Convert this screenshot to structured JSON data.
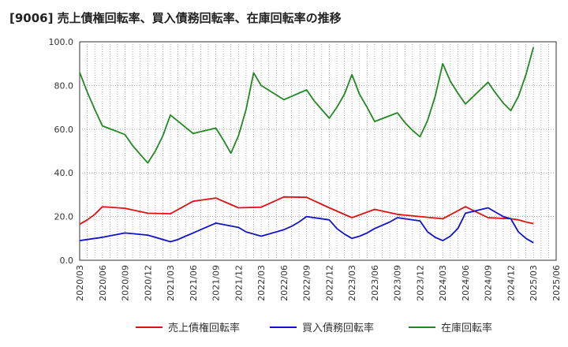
{
  "chart_data": {
    "type": "line",
    "title": "[9006]  売上債権回転率、買入債務回転率、在庫回転率の推移",
    "xlabel": "",
    "ylabel": "",
    "ylim": [
      0,
      100
    ],
    "y_ticks": [
      "0.0",
      "20.0",
      "40.0",
      "60.0",
      "80.0",
      "100.0"
    ],
    "x_ticks": [
      "2020/03",
      "2020/06",
      "2020/09",
      "2020/12",
      "2021/03",
      "2021/06",
      "2021/09",
      "2021/12",
      "2022/03",
      "2022/06",
      "2022/09",
      "2022/12",
      "2023/03",
      "2023/06",
      "2023/09",
      "2023/12",
      "2024/03",
      "2024/06",
      "2024/09",
      "2024/12",
      "2025/03",
      "2025/06"
    ],
    "grid": true,
    "legend_position": "bottom",
    "x_months": [
      0,
      1,
      2,
      3,
      4,
      5,
      6,
      7,
      8,
      9,
      10,
      11,
      12,
      13,
      14,
      15,
      16,
      17,
      18,
      19,
      20,
      21,
      22,
      23,
      24,
      25,
      26,
      27,
      28,
      29,
      30,
      31,
      32,
      33,
      34,
      35,
      36,
      37,
      38,
      39,
      40,
      41,
      42,
      43,
      44,
      45,
      46,
      47,
      48,
      49,
      50,
      51,
      52,
      53,
      54,
      55,
      56,
      57,
      58,
      59,
      60
    ],
    "series": [
      {
        "name": "売上債権回転率",
        "color": "#dd1111",
        "x": [
          0,
          1,
          2,
          3,
          6,
          9,
          12,
          15,
          18,
          21,
          24,
          27,
          30,
          33,
          36,
          39,
          42,
          45,
          48,
          51,
          54,
          57,
          58,
          59,
          60
        ],
        "values": [
          16.5,
          18.5,
          21.0,
          24.5,
          23.8,
          21.5,
          21.3,
          27.0,
          28.5,
          24.0,
          24.3,
          29.0,
          28.8,
          24.0,
          19.5,
          23.3,
          21.0,
          20.0,
          19.0,
          24.5,
          19.5,
          19.0,
          18.5,
          17.5,
          16.8
        ]
      },
      {
        "name": "買入債務回転率",
        "color": "#1111cc",
        "x": [
          0,
          1,
          2,
          3,
          6,
          9,
          12,
          13,
          14,
          15,
          16,
          17,
          18,
          21,
          22,
          23,
          24,
          25,
          26,
          27,
          28,
          29,
          30,
          33,
          34,
          35,
          36,
          37,
          38,
          39,
          40,
          41,
          42,
          45,
          46,
          47,
          48,
          49,
          50,
          51,
          54,
          55,
          56,
          57,
          58,
          59,
          60
        ],
        "values": [
          9.0,
          9.5,
          10.0,
          10.5,
          12.5,
          11.5,
          8.5,
          9.5,
          11.0,
          12.5,
          14.0,
          15.5,
          17.0,
          15.0,
          13.0,
          12.0,
          11.0,
          12.0,
          13.0,
          14.0,
          15.5,
          17.5,
          20.0,
          18.5,
          14.5,
          12.0,
          10.0,
          11.0,
          12.5,
          14.5,
          16.0,
          17.5,
          19.5,
          18.0,
          13.0,
          10.5,
          9.0,
          11.0,
          14.5,
          21.5,
          24.0,
          22.0,
          20.0,
          19.0,
          13.0,
          10.0,
          8.0
        ]
      },
      {
        "name": "在庫回転率",
        "color": "#228822",
        "x": [
          0,
          1,
          2,
          3,
          6,
          7,
          8,
          9,
          10,
          11,
          12,
          15,
          18,
          19,
          20,
          21,
          22,
          23,
          24,
          27,
          30,
          31,
          32,
          33,
          34,
          35,
          36,
          37,
          38,
          39,
          42,
          43,
          44,
          45,
          46,
          47,
          48,
          49,
          50,
          51,
          54,
          55,
          56,
          57,
          58,
          59,
          60
        ],
        "values": [
          86.0,
          77.0,
          69.0,
          61.5,
          57.5,
          52.5,
          48.5,
          44.5,
          50.0,
          57.0,
          66.5,
          58.0,
          60.5,
          55.0,
          49.0,
          57.0,
          69.0,
          85.8,
          80.0,
          73.5,
          78.0,
          73.0,
          69.0,
          65.0,
          70.0,
          76.0,
          85.0,
          76.0,
          70.0,
          63.5,
          67.5,
          63.0,
          59.5,
          56.5,
          64.0,
          75.0,
          90.0,
          82.0,
          76.5,
          71.5,
          81.5,
          76.5,
          72.0,
          68.5,
          75.0,
          85.0,
          97.5
        ]
      }
    ]
  }
}
